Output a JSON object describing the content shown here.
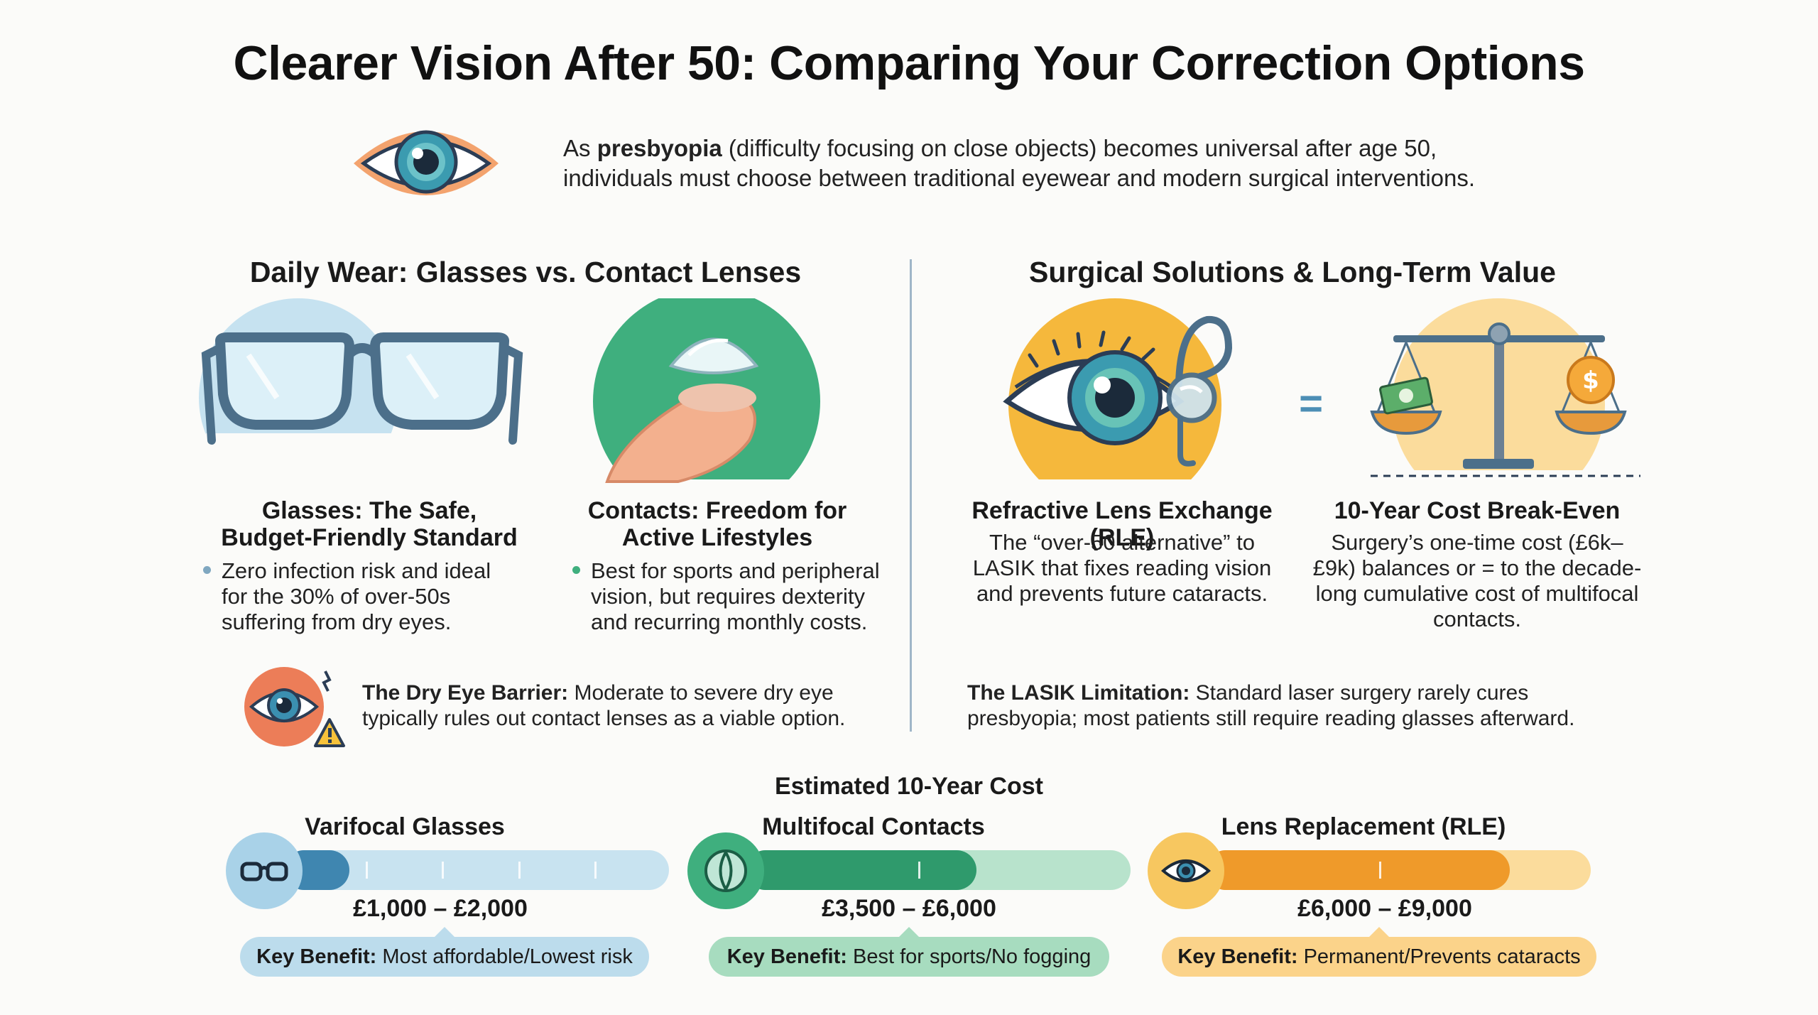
{
  "title": "Clearer Vision After 50: Comparing Your Correction Options",
  "intro": {
    "prefix": "As ",
    "bold": "presbyopia",
    "line1_rest": " (difficulty focusing on close objects) becomes universal after age 50,",
    "line2": "individuals must choose between traditional eyewear and modern surgical interventions."
  },
  "left_section": {
    "heading": "Daily Wear: Glasses vs. Contact Lenses",
    "glasses": {
      "title_line1": "Glasses: The Safe,",
      "title_line2": "Budget-Friendly Standard",
      "body": "Zero infection risk and ideal for the 30% of over-50s suffering from dry eyes."
    },
    "contacts": {
      "title_line1": "Contacts: Freedom for",
      "title_line2": "Active Lifestyles",
      "body": "Best for sports and peripheral vision, but requires dexterity and recurring monthly costs."
    },
    "note": {
      "bold": "The Dry Eye Barrier:",
      "text": " Moderate to severe dry eye typically rules out contact lenses as a viable option."
    }
  },
  "right_section": {
    "heading": "Surgical Solutions & Long-Term Value",
    "rle": {
      "title": "Refractive Lens Exchange (RLE)",
      "body": "The “over-50 alternative” to LASIK that fixes reading vision and prevents future cataracts."
    },
    "equals": "=",
    "breakeven": {
      "title": "10-Year Cost Break-Even",
      "body": "Surgery’s one-time cost (£6k–£9k) balances or = to the decade-long cumulative cost of multifocal contacts."
    },
    "note": {
      "bold": "The LASIK Limitation:",
      "text": " Standard laser surgery rarely cures presbyopia; most patients still require reading glasses afterward."
    }
  },
  "cost_comparison": {
    "heading": "Estimated 10-Year Cost",
    "options": [
      {
        "name": "Varifocal Glasses",
        "range": "£1,000 – £2,000",
        "fill_fraction": 0.17,
        "key_label": "Key Benefit:",
        "key_text": " Most affordable/Lowest risk",
        "icon": "glasses-icon",
        "color_main": "#3f86b0",
        "color_light": "#c8e3f0"
      },
      {
        "name": "Multifocal Contacts",
        "range": "£3,500 – £6,000",
        "fill_fraction": 0.6,
        "key_label": "Key Benefit:",
        "key_text": " Best for sports/No fogging",
        "icon": "contact-lens-icon",
        "color_main": "#2f9a6c",
        "color_light": "#b8e3cc"
      },
      {
        "name": "Lens Replacement (RLE)",
        "range": "£6,000 – £9,000",
        "fill_fraction": 0.79,
        "key_label": "Key Benefit:",
        "key_text": " Permanent/Prevents cataracts",
        "icon": "eye-icon",
        "color_main": "#ef9a2a",
        "color_light": "#fbdc9c"
      }
    ]
  }
}
